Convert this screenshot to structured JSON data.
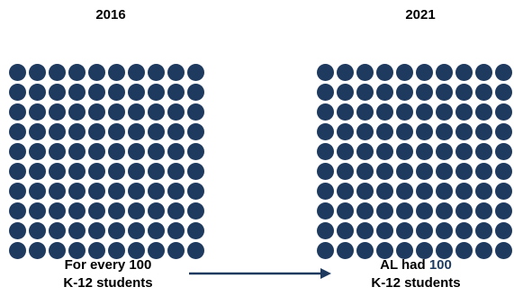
{
  "panels": {
    "left": {
      "year": "2016",
      "dot_count": 100,
      "caption_line1": "For every 100",
      "caption_line2": "K-12 students"
    },
    "right": {
      "year": "2021",
      "dot_count": 100,
      "caption_prefix": "AL had ",
      "caption_highlight": "100",
      "caption_line2": "K-12 students"
    }
  },
  "colors": {
    "dot": "#1f3a5f",
    "highlight": "#1f3a5f",
    "arrow": "#1f3a5f"
  }
}
